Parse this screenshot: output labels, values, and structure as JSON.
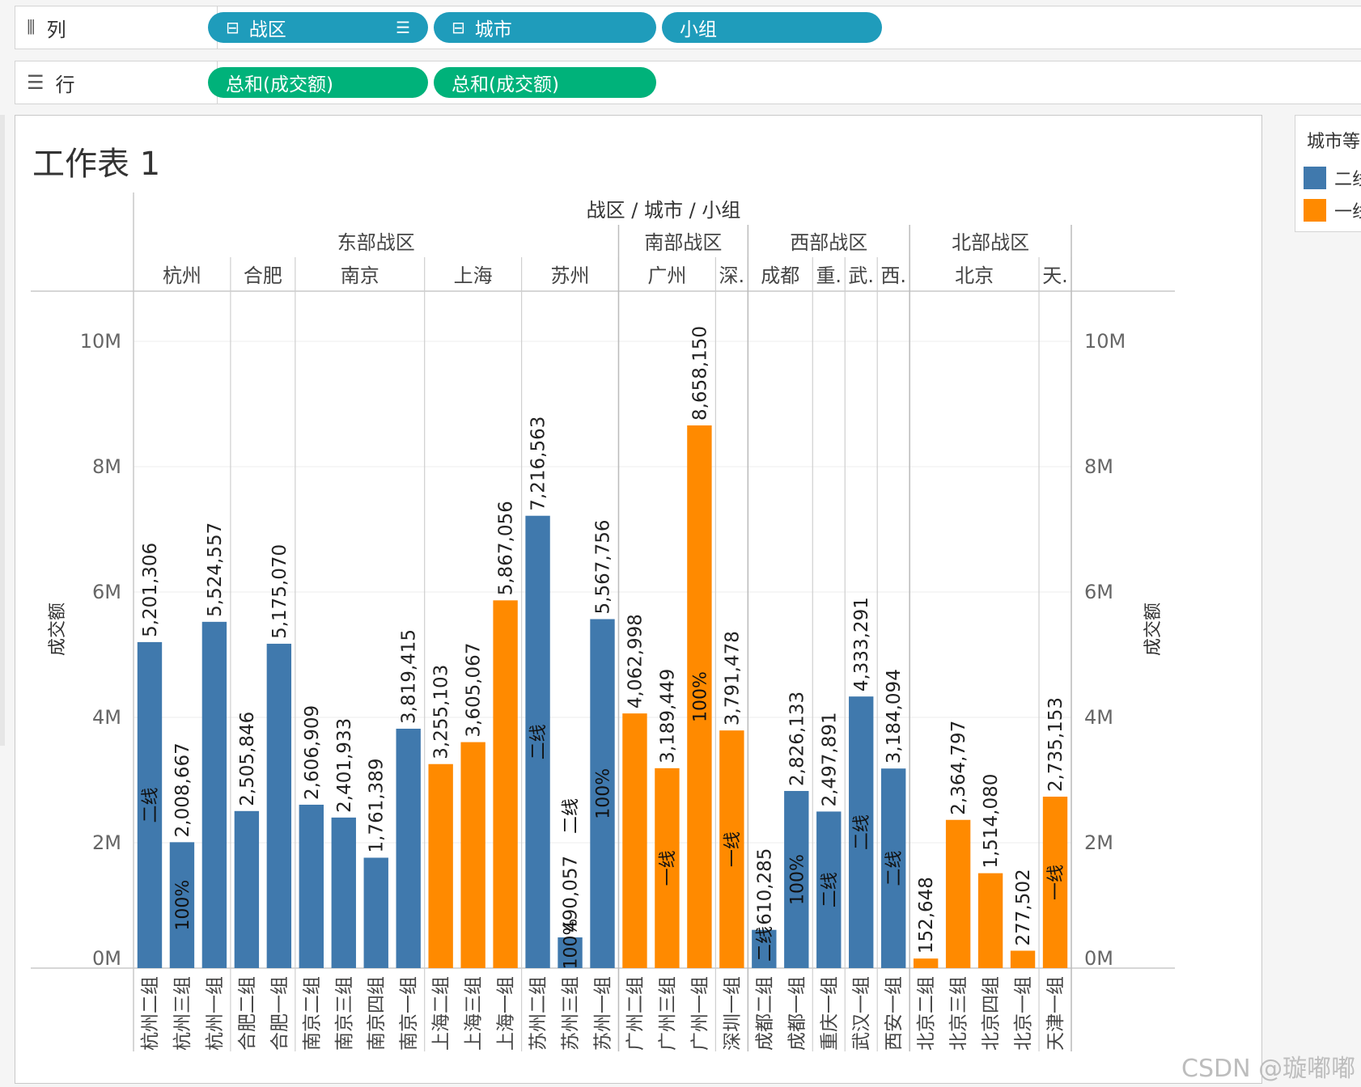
{
  "shelves": {
    "columns": {
      "label": "列",
      "icon": "columns-icon",
      "pills": [
        {
          "label": "战区",
          "prefix_icon": "minus-box-icon",
          "sort_icon": "sort-bars-icon"
        },
        {
          "label": "城市",
          "prefix_icon": "minus-box-icon"
        },
        {
          "label": "小组"
        }
      ]
    },
    "rows": {
      "label": "行",
      "icon": "rows-list-icon",
      "pills": [
        {
          "label": "总和(成交额)"
        },
        {
          "label": "总和(成交额)"
        }
      ]
    }
  },
  "sheet_title": "工作表 1",
  "legend": {
    "title": "城市等",
    "items": [
      {
        "label": "二线",
        "color": "#4079ad"
      },
      {
        "label": "一线",
        "color": "#ff8a00"
      }
    ]
  },
  "watermark": "CSDN @璇嘟嘟",
  "chart_data": {
    "type": "bar",
    "header_title": "战区 / 城市 / 小组",
    "ylabel": "成交额",
    "ylabel_right": "成交额",
    "ylim": [
      0,
      10000000
    ],
    "y_ticks": [
      "0M",
      "2M",
      "4M",
      "6M",
      "8M",
      "10M"
    ],
    "y_tick_values": [
      0,
      2000000,
      4000000,
      6000000,
      8000000,
      10000000
    ],
    "grid": true,
    "legend_placement": "right",
    "regions": [
      {
        "name": "东部战区",
        "cities": [
          {
            "name": "杭州",
            "groups": [
              {
                "name": "杭州二组",
                "value": 5201306,
                "tier": "二线",
                "label": "5,201,306",
                "annotation": "二线"
              },
              {
                "name": "杭州三组",
                "value": 2008667,
                "tier": "二线",
                "label": "2,008,667",
                "annotation": "100%"
              },
              {
                "name": "杭州一组",
                "value": 5524557,
                "tier": "二线",
                "label": "5,524,557"
              }
            ]
          },
          {
            "name": "合肥",
            "groups": [
              {
                "name": "合肥二组",
                "value": 2505846,
                "tier": "二线",
                "label": "2,505,846"
              },
              {
                "name": "合肥一组",
                "value": 5175070,
                "tier": "二线",
                "label": "5,175,070"
              }
            ]
          },
          {
            "name": "南京",
            "groups": [
              {
                "name": "南京二组",
                "value": 2606909,
                "tier": "二线",
                "label": "2,606,909"
              },
              {
                "name": "南京三组",
                "value": 2401933,
                "tier": "二线",
                "label": "2,401,933"
              },
              {
                "name": "南京四组",
                "value": 1761389,
                "tier": "二线",
                "label": "1,761,389"
              },
              {
                "name": "南京一组",
                "value": 3819415,
                "tier": "二线",
                "label": "3,819,415"
              }
            ]
          },
          {
            "name": "上海",
            "groups": [
              {
                "name": "上海二组",
                "value": 3255103,
                "tier": "一线",
                "label": "3,255,103"
              },
              {
                "name": "上海三组",
                "value": 3605067,
                "tier": "一线",
                "label": "3,605,067"
              },
              {
                "name": "上海一组",
                "value": 5867056,
                "tier": "一线",
                "label": "5,867,056"
              }
            ]
          },
          {
            "name": "苏州",
            "groups": [
              {
                "name": "苏州二组",
                "value": 7216563,
                "tier": "二线",
                "label": "7,216,563",
                "annotation": "二线"
              },
              {
                "name": "苏州三组",
                "value": 490057,
                "tier": "二线",
                "label": "490,057",
                "annotation": "100%",
                "annotation2": "二线"
              },
              {
                "name": "苏州一组",
                "value": 5567756,
                "tier": "二线",
                "label": "5,567,756",
                "annotation": "100%"
              }
            ]
          }
        ]
      },
      {
        "name": "南部战区",
        "cities": [
          {
            "name": "广州",
            "groups": [
              {
                "name": "广州二组",
                "value": 4062998,
                "tier": "一线",
                "label": "4,062,998"
              },
              {
                "name": "广州三组",
                "value": 3189449,
                "tier": "一线",
                "label": "3,189,449",
                "annotation": "一线"
              },
              {
                "name": "广州一组",
                "value": 8658150,
                "tier": "一线",
                "label": "8,658,150",
                "annotation": "100%"
              }
            ]
          },
          {
            "name": "深.",
            "groups": [
              {
                "name": "深圳一组",
                "value": 3791478,
                "tier": "一线",
                "label": "3,791,478",
                "annotation": "一线"
              }
            ]
          }
        ]
      },
      {
        "name": "西部战区",
        "cities": [
          {
            "name": "成都",
            "groups": [
              {
                "name": "成都二组",
                "value": 610285,
                "tier": "二线",
                "label": "610,285",
                "annotation": "二线"
              },
              {
                "name": "成都一组",
                "value": 2826133,
                "tier": "二线",
                "label": "2,826,133",
                "annotation": "100%"
              }
            ]
          },
          {
            "name": "重.",
            "groups": [
              {
                "name": "重庆一组",
                "value": 2497891,
                "tier": "二线",
                "label": "2,497,891",
                "annotation": "二线"
              }
            ]
          },
          {
            "name": "武.",
            "groups": [
              {
                "name": "武汉一组",
                "value": 4333291,
                "tier": "二线",
                "label": "4,333,291",
                "annotation": "二线"
              }
            ]
          },
          {
            "name": "西.",
            "groups": [
              {
                "name": "西安一组",
                "value": 3184094,
                "tier": "二线",
                "label": "3,184,094",
                "annotation": "二线"
              }
            ]
          }
        ]
      },
      {
        "name": "北部战区",
        "cities": [
          {
            "name": "北京",
            "groups": [
              {
                "name": "北京二组",
                "value": 152648,
                "tier": "一线",
                "label": "152,648"
              },
              {
                "name": "北京三组",
                "value": 2364797,
                "tier": "一线",
                "label": "2,364,797"
              },
              {
                "name": "北京四组",
                "value": 1514080,
                "tier": "一线",
                "label": "1,514,080"
              },
              {
                "name": "北京一组",
                "value": 277502,
                "tier": "一线",
                "label": "277,502"
              }
            ]
          },
          {
            "name": "天.",
            "groups": [
              {
                "name": "天津一组",
                "value": 2735153,
                "tier": "一线",
                "label": "2,735,153",
                "annotation": "一线"
              }
            ]
          }
        ]
      }
    ]
  }
}
